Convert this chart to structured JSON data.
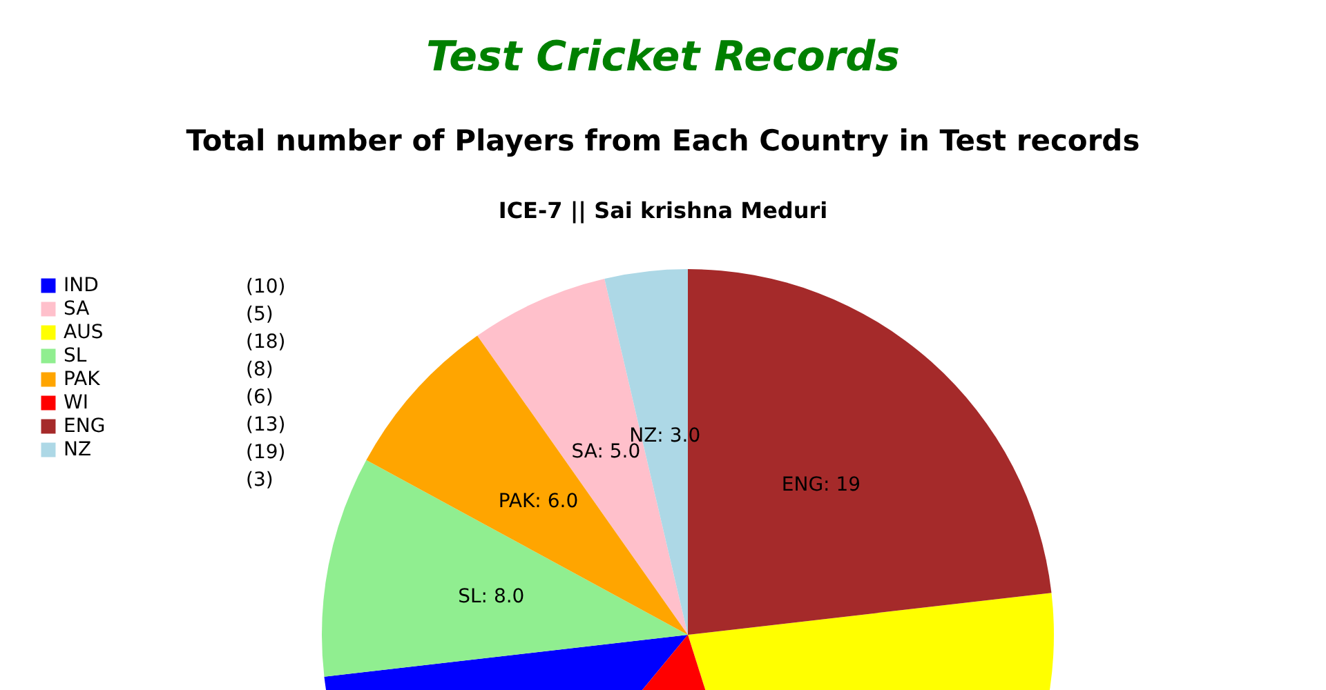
{
  "chart_data": {
    "type": "pie",
    "title": "Test Cricket Records",
    "subtitle": "Total number of Players from Each Country in Test records",
    "annotations": [
      "ICE-7 || Sai krishna Meduri",
      "(10)",
      "(5)",
      "(18)",
      "(8)",
      "(6)",
      "(13)",
      "(19)",
      "(3)"
    ],
    "categories": [
      "IND",
      "SA",
      "AUS",
      "SL",
      "PAK",
      "WI",
      "ENG",
      "NZ"
    ],
    "values": [
      10,
      5,
      18,
      8,
      6,
      13,
      19,
      3
    ],
    "colors": [
      "#0000ff",
      "#ffc0cb",
      "#ffff00",
      "#90ee90",
      "#ffa500",
      "#ff0000",
      "#a52a2a",
      "#add8e6"
    ],
    "value_labels": [
      null,
      "SA: 5.0",
      null,
      "SL: 8.0",
      "PAK: 6.0",
      null,
      "ENG: 19",
      "NZ: 3.0"
    ],
    "legend": "top left"
  }
}
